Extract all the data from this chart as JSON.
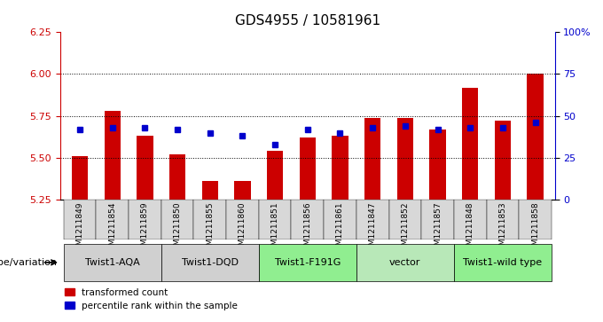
{
  "title": "GDS4955 / 10581961",
  "samples": [
    "GSM1211849",
    "GSM1211854",
    "GSM1211859",
    "GSM1211850",
    "GSM1211855",
    "GSM1211860",
    "GSM1211851",
    "GSM1211856",
    "GSM1211861",
    "GSM1211847",
    "GSM1211852",
    "GSM1211857",
    "GSM1211848",
    "GSM1211853",
    "GSM1211858"
  ],
  "red_values": [
    5.51,
    5.78,
    5.63,
    5.52,
    5.36,
    5.36,
    5.54,
    5.62,
    5.63,
    5.74,
    5.74,
    5.67,
    5.92,
    5.72,
    6.0
  ],
  "blue_values": [
    42,
    43,
    43,
    42,
    40,
    38,
    33,
    42,
    40,
    43,
    44,
    42,
    43,
    43,
    46
  ],
  "groups": [
    {
      "label": "Twist1-AQA",
      "start": 0,
      "end": 3,
      "color": "#d4edda"
    },
    {
      "label": "Twist1-DQD",
      "start": 3,
      "end": 6,
      "color": "#d4edda"
    },
    {
      "label": "Twist1-F191G",
      "start": 6,
      "end": 9,
      "color": "#90ee90"
    },
    {
      "label": "vector",
      "start": 9,
      "end": 12,
      "color": "#90ee90"
    },
    {
      "label": "Twist1-wild type",
      "start": 12,
      "end": 15,
      "color": "#90ee90"
    }
  ],
  "ylim_left": [
    5.25,
    6.25
  ],
  "ylim_right": [
    0,
    100
  ],
  "yticks_left": [
    5.25,
    5.5,
    5.75,
    6.0,
    6.25
  ],
  "yticks_right": [
    0,
    25,
    50,
    75,
    100
  ],
  "ytick_labels_right": [
    "0",
    "25",
    "50",
    "75",
    "100%"
  ],
  "bar_color": "#cc0000",
  "dot_color": "#0000cc",
  "bar_width": 0.5,
  "legend_red": "transformed count",
  "legend_blue": "percentile rank within the sample",
  "xlabel_group": "genotype/variation",
  "background_color": "#ffffff",
  "plot_bg": "#ffffff",
  "grid_color": "#000000",
  "tick_color_left": "#cc0000",
  "tick_color_right": "#0000cc",
  "baseline": 5.25
}
